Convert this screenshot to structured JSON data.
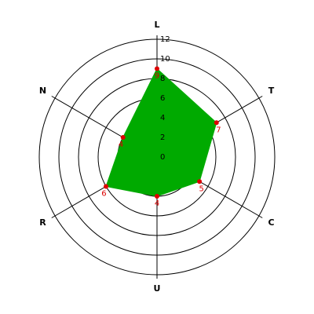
{
  "chart_data": {
    "type": "radar",
    "categories": [
      "L",
      "T",
      "C",
      "U",
      "R",
      "N"
    ],
    "values": [
      9,
      7,
      5,
      4,
      6,
      4
    ],
    "color": "#00aa00",
    "marker_color": "#dd0000",
    "ylim": [
      0,
      12
    ],
    "yticks": [
      0,
      2,
      4,
      6,
      8,
      10,
      12
    ],
    "grid": true
  }
}
